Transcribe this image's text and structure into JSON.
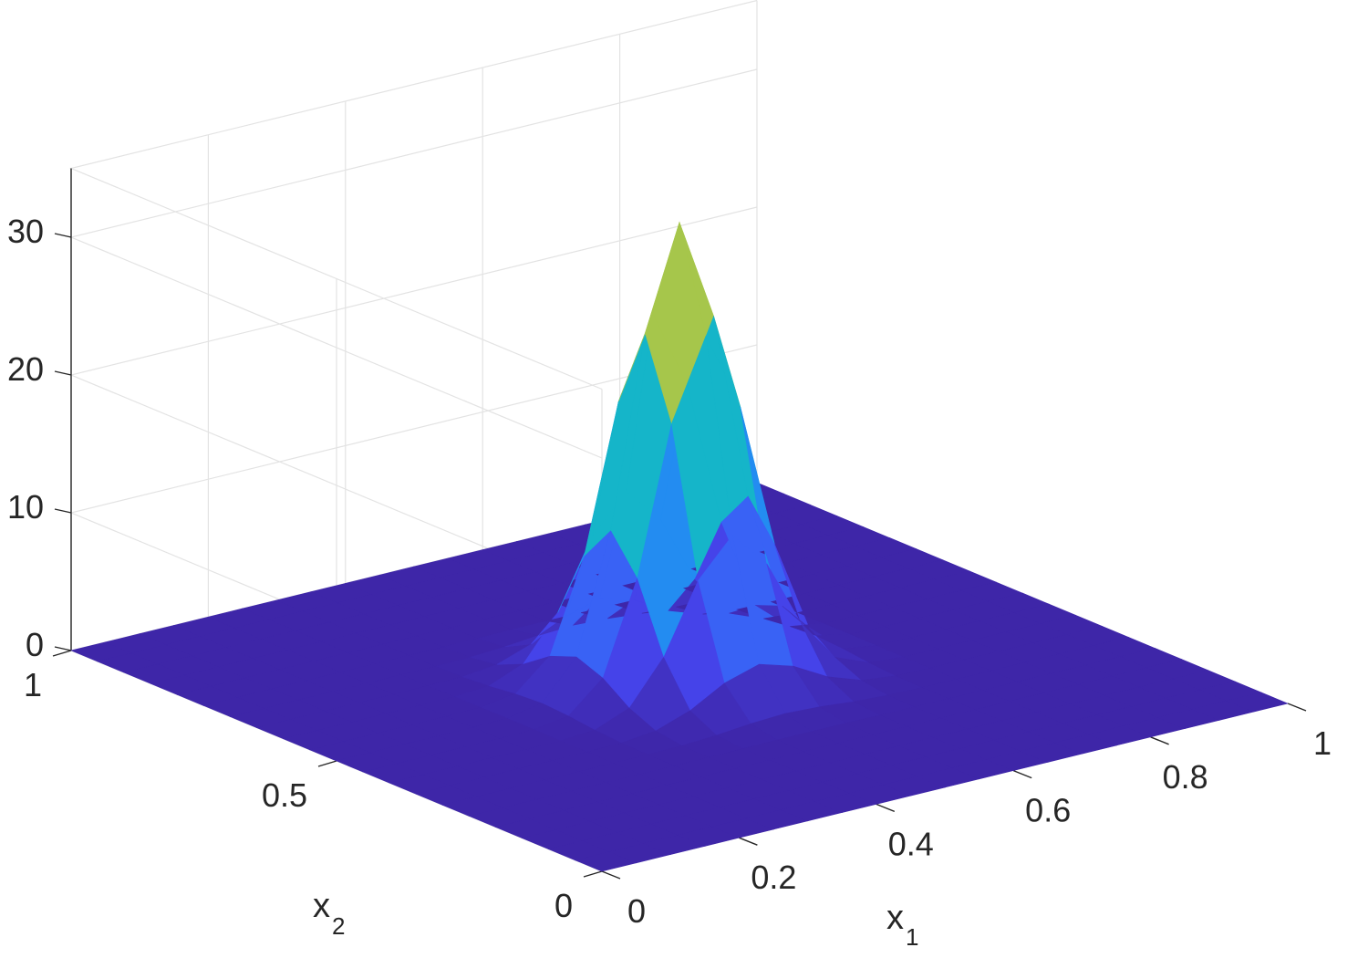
{
  "chart_data": {
    "type": "surface",
    "title": "",
    "x_axis": {
      "label": "x",
      "label_subscript": "1",
      "range": [
        0,
        1
      ],
      "ticks": [
        "0",
        "0.2",
        "0.4",
        "0.6",
        "0.8",
        "1"
      ]
    },
    "y_axis": {
      "label": "x",
      "label_subscript": "2",
      "range": [
        0,
        1
      ],
      "ticks": [
        "0",
        "0.5",
        "1"
      ]
    },
    "z_axis": {
      "label": "",
      "range": [
        0,
        35
      ],
      "ticks": [
        "0",
        "10",
        "20",
        "30"
      ]
    },
    "grid": true,
    "colormap": "parula",
    "colors": {
      "low": "#3e26a8",
      "high": "#f9c53a"
    },
    "surface": {
      "grid_size": 21,
      "peak_value": 33.0,
      "peak_location": [
        0.5,
        0.5
      ],
      "description_values": {
        "shape": "gaussian",
        "sigma": 0.07
      }
    }
  }
}
